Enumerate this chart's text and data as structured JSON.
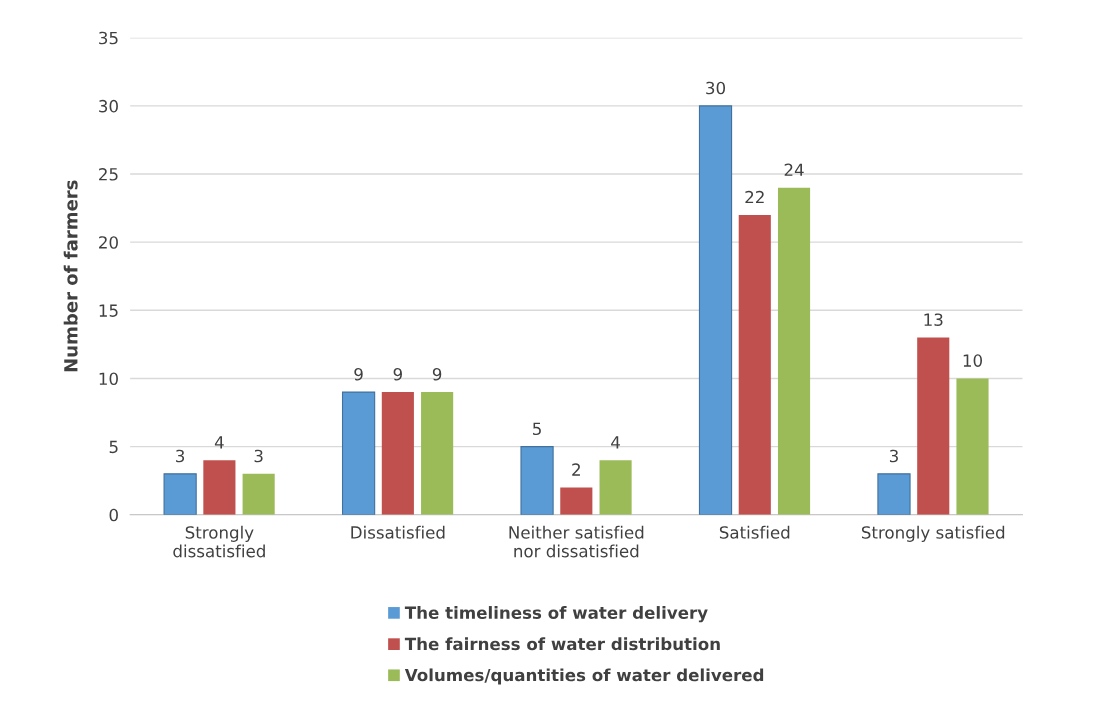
{
  "chart_data": {
    "type": "bar",
    "ylabel": "Number of farmers",
    "categories": [
      "Strongly\ndissatisfied",
      "Dissatisfied",
      "Neither satisfied\nnor dissatisfied",
      "Satisfied",
      "Strongly satisfied"
    ],
    "series": [
      {
        "name": "The timeliness of water delivery",
        "color": "#5b9bd5",
        "values": [
          3,
          9,
          5,
          30,
          3
        ]
      },
      {
        "name": "The fairness of water distribution",
        "color": "#c0504d",
        "values": [
          4,
          9,
          2,
          22,
          13
        ]
      },
      {
        "name": "Volumes/quantities of water delivered",
        "color": "#9bbb59",
        "values": [
          3,
          9,
          4,
          24,
          10
        ]
      }
    ],
    "ylim": [
      0,
      35
    ],
    "yticks": [
      0,
      5,
      10,
      15,
      20,
      25,
      30,
      35
    ],
    "grid": "y",
    "legend": "bottom",
    "data_labels": true
  }
}
